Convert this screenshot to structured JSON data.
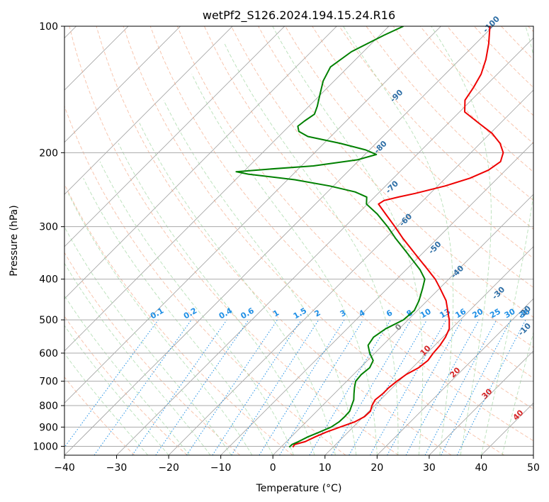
{
  "chart_data": {
    "type": "line",
    "subtype": "skew-t log-p diagram",
    "title": "wetPf2_S126.2024.194.15.24.R16",
    "xlabel": "Temperature (°C)",
    "ylabel": "Pressure (hPa)",
    "xlim": [
      -40,
      50
    ],
    "ylim": [
      1050,
      100
    ],
    "y_scale": "log",
    "grid": true,
    "x_ticks": [
      -40,
      -30,
      -20,
      -10,
      0,
      10,
      20,
      30,
      40,
      50
    ],
    "y_ticks": [
      1000,
      900,
      800,
      700,
      600,
      500,
      400,
      300,
      200,
      100
    ],
    "colors": {
      "temperature": "#ee0000",
      "dewpoint": "#008000",
      "isotherm": "#9e9e9e",
      "dry_adiabat": "#f4a582",
      "moist_adiabat": "#a6d8a6",
      "mixing_ratio": "#1f8fe5",
      "theta_e_label": "#2f6fa6",
      "positive_label": "#d62728",
      "zero_label": "#808080"
    },
    "series": [
      {
        "name": "",
        "variable": "temperature",
        "points": [
          [
            1005,
            2.3
          ],
          [
            990,
            2.1
          ],
          [
            975,
            3.6
          ],
          [
            950,
            4.6
          ],
          [
            925,
            5.8
          ],
          [
            900,
            7.5
          ],
          [
            875,
            9.3
          ],
          [
            850,
            10.2
          ],
          [
            825,
            10.3
          ],
          [
            800,
            9.5
          ],
          [
            775,
            9.0
          ],
          [
            750,
            9.3
          ],
          [
            725,
            9.3
          ],
          [
            700,
            9.6
          ],
          [
            675,
            10.1
          ],
          [
            650,
            11.2
          ],
          [
            625,
            11.6
          ],
          [
            600,
            11.2
          ],
          [
            575,
            11.0
          ],
          [
            550,
            10.5
          ],
          [
            525,
            9.6
          ],
          [
            500,
            7.9
          ],
          [
            475,
            5.8
          ],
          [
            450,
            3.6
          ],
          [
            420,
            0.0
          ],
          [
            400,
            -2.6
          ],
          [
            380,
            -5.8
          ],
          [
            350,
            -11.0
          ],
          [
            320,
            -16.6
          ],
          [
            300,
            -20.4
          ],
          [
            280,
            -24.6
          ],
          [
            265,
            -27.9
          ],
          [
            260,
            -27.5
          ],
          [
            255,
            -25.4
          ],
          [
            250,
            -22.9
          ],
          [
            240,
            -18.6
          ],
          [
            230,
            -15.3
          ],
          [
            220,
            -13.3
          ],
          [
            210,
            -12.6
          ],
          [
            200,
            -13.8
          ],
          [
            190,
            -16.2
          ],
          [
            180,
            -19.6
          ],
          [
            170,
            -24.2
          ],
          [
            160,
            -29.0
          ],
          [
            150,
            -31.2
          ],
          [
            140,
            -32.0
          ],
          [
            130,
            -33.1
          ],
          [
            120,
            -35.0
          ],
          [
            110,
            -37.5
          ],
          [
            100,
            -40.6
          ]
        ]
      },
      {
        "name": "",
        "variable": "dewpoint",
        "points": [
          [
            1005,
            1.6
          ],
          [
            990,
            1.6
          ],
          [
            975,
            2.3
          ],
          [
            950,
            3.2
          ],
          [
            925,
            4.5
          ],
          [
            900,
            5.8
          ],
          [
            875,
            6.3
          ],
          [
            850,
            6.4
          ],
          [
            825,
            6.3
          ],
          [
            800,
            5.6
          ],
          [
            775,
            4.9
          ],
          [
            750,
            3.8
          ],
          [
            725,
            2.7
          ],
          [
            700,
            1.7
          ],
          [
            675,
            1.5
          ],
          [
            650,
            1.8
          ],
          [
            625,
            1.1
          ],
          [
            600,
            -1.0
          ],
          [
            575,
            -2.8
          ],
          [
            550,
            -3.3
          ],
          [
            525,
            -2.6
          ],
          [
            500,
            -0.9
          ],
          [
            475,
            -0.6
          ],
          [
            450,
            -1.6
          ],
          [
            420,
            -3.3
          ],
          [
            400,
            -4.6
          ],
          [
            380,
            -7.3
          ],
          [
            350,
            -12.4
          ],
          [
            320,
            -18.0
          ],
          [
            300,
            -21.8
          ],
          [
            280,
            -26.2
          ],
          [
            265,
            -30.2
          ],
          [
            255,
            -31.5
          ],
          [
            248,
            -34.7
          ],
          [
            240,
            -40.7
          ],
          [
            232,
            -48.6
          ],
          [
            225,
            -58.6
          ],
          [
            222,
            -61.4
          ],
          [
            219,
            -55.9
          ],
          [
            215,
            -47.7
          ],
          [
            208,
            -40.4
          ],
          [
            202,
            -37.8
          ],
          [
            197,
            -40.7
          ],
          [
            190,
            -46.9
          ],
          [
            183,
            -54.4
          ],
          [
            178,
            -57.1
          ],
          [
            173,
            -58.3
          ],
          [
            168,
            -58.0
          ],
          [
            162,
            -57.4
          ],
          [
            155,
            -58.4
          ],
          [
            145,
            -60.2
          ],
          [
            135,
            -62.1
          ],
          [
            125,
            -63.4
          ],
          [
            115,
            -62.3
          ],
          [
            105,
            -59.2
          ],
          [
            100,
            -57.2
          ]
        ]
      }
    ],
    "annotations": {
      "mixing_ratio_labels": [
        "0.1",
        "0.2",
        "0.4",
        "0.6",
        "1",
        "1.5",
        "2",
        "3",
        "4",
        "6",
        "8",
        "10",
        "13",
        "16",
        "20",
        "25",
        "30",
        "36"
      ],
      "theta_e_labels": [
        "-100",
        "-90",
        "-80",
        "-70",
        "-60",
        "-50",
        "-40",
        "-30",
        "-20",
        "-10"
      ],
      "positive_labels": [
        "0",
        "10",
        "20",
        "30",
        "40"
      ]
    }
  }
}
